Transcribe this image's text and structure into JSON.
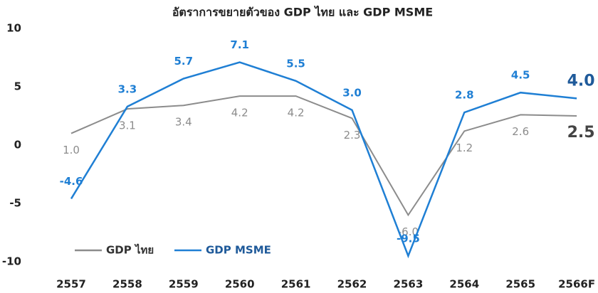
{
  "chart_data": {
    "type": "line",
    "title": "อัตราการขยายตัวของ GDP ไทย และ GDP MSME",
    "categories": [
      "2557",
      "2558",
      "2559",
      "2560",
      "2561",
      "2562",
      "2563",
      "2564",
      "2565",
      "2566F"
    ],
    "series": [
      {
        "name": "GDP ไทย",
        "color": "#8c8c8c",
        "values": [
          1.0,
          3.1,
          3.4,
          4.2,
          4.2,
          2.3,
          -6.0,
          1.2,
          2.6,
          2.5
        ],
        "value_labels": [
          "1.0",
          "3.1",
          "3.4",
          "4.2",
          "4.2",
          "2.3",
          "-6.0",
          "1.2",
          "2.6",
          "2.5"
        ]
      },
      {
        "name": "GDP MSME",
        "color": "#1f7fd4",
        "values": [
          -4.6,
          3.3,
          5.7,
          7.1,
          5.5,
          3.0,
          -9.5,
          2.8,
          4.5,
          4.0
        ],
        "value_labels": [
          "-4.6",
          "3.3",
          "5.7",
          "7.1",
          "5.5",
          "3.0",
          "-9.5",
          "2.8",
          "4.5",
          "4.0"
        ]
      }
    ],
    "ylim": [
      -10,
      10
    ],
    "yticks": [
      -10,
      -5,
      0,
      5,
      10
    ],
    "grid": false
  }
}
